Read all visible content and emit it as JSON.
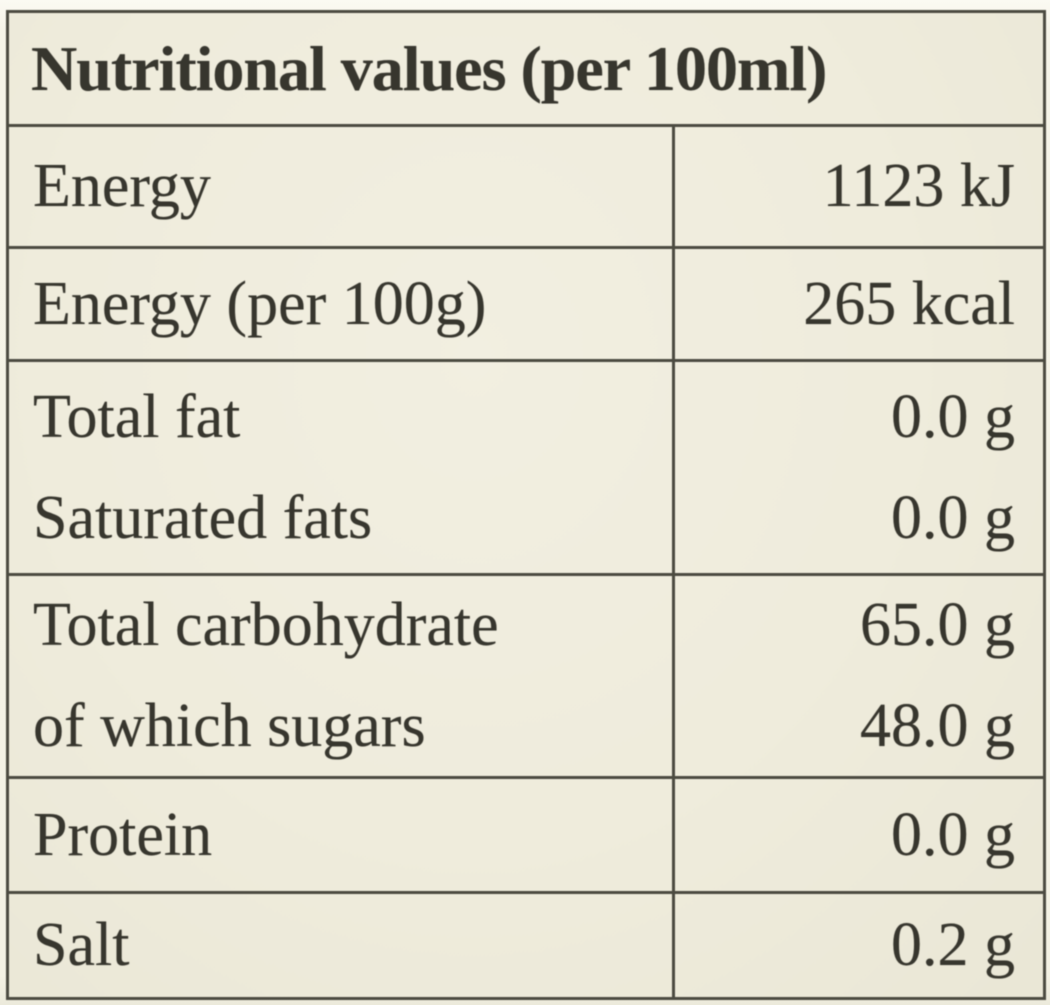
{
  "label": {
    "title": "Nutritional values (per 100ml)",
    "groups": [
      {
        "rows": [
          {
            "name": "Energy",
            "value": "1123 kJ"
          }
        ]
      },
      {
        "rows": [
          {
            "name": "Energy (per 100g)",
            "value": "265 kcal"
          }
        ]
      },
      {
        "rows": [
          {
            "name": "Total fat",
            "value": "0.0 g"
          },
          {
            "name": "Saturated fats",
            "value": "0.0 g"
          }
        ]
      },
      {
        "rows": [
          {
            "name": "Total carbohydrate",
            "value": "65.0 g"
          },
          {
            "name": "of which sugars",
            "value": "48.0 g"
          }
        ]
      },
      {
        "rows": [
          {
            "name": "Protein",
            "value": "0.0 g"
          }
        ]
      },
      {
        "rows": [
          {
            "name": "Salt",
            "value": "0.2 g"
          }
        ]
      }
    ],
    "colors": {
      "label_background": "#efecdc",
      "page_background": "#f6f4e8",
      "border": "#4c4b41",
      "text": "#37362e"
    }
  }
}
